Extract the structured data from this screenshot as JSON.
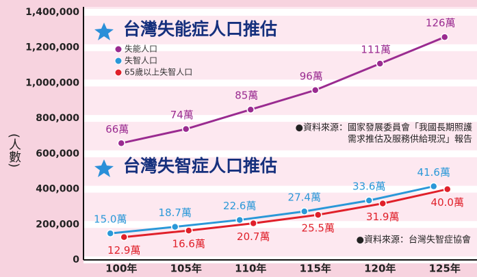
{
  "chart_data": {
    "type": "line",
    "titles": [
      "台灣失能症人口推估",
      "台灣失智症人口推估"
    ],
    "y_label": "(人數)",
    "categories": [
      "100年",
      "105年",
      "110年",
      "115年",
      "120年",
      "125年"
    ],
    "series": [
      {
        "name": "失能人口",
        "color": "#9a2b90",
        "values": [
          660000,
          740000,
          850000,
          960000,
          1110000,
          1260000
        ],
        "value_labels": [
          "66萬",
          "74萬",
          "85萬",
          "96萬",
          "111萬",
          "126萬"
        ]
      },
      {
        "name": "失智人口",
        "color": "#2a98d8",
        "values": [
          150000,
          187000,
          226000,
          274000,
          336000,
          416000
        ],
        "value_labels": [
          "15.0萬",
          "18.7萬",
          "22.6萬",
          "27.4萬",
          "33.6萬",
          "41.6萬"
        ]
      },
      {
        "name": "65歲以上失智人口",
        "color": "#e0202a",
        "values": [
          129000,
          166000,
          207000,
          255000,
          319000,
          400000
        ],
        "value_labels": [
          "12.9萬",
          "16.6萬",
          "20.7萬",
          "25.5萬",
          "31.9萬",
          "40.0萬"
        ]
      }
    ],
    "sources": [
      [
        "●資料來源：國家發展委員會「我國長期照護",
        "需求推估及服務供給現況」報告"
      ],
      [
        "●資料來源：台灣失智症協會"
      ]
    ],
    "ylim": [
      0,
      1400000
    ],
    "yticks": [
      0,
      {
        "value": 200000,
        "label": "200,000"
      },
      {
        "value": 400000,
        "label": "400,000"
      },
      {
        "value": 600000,
        "label": "600,000"
      },
      {
        "value": 800000,
        "label": "800,000"
      },
      {
        "value": 1000000,
        "label": "1,000,000"
      },
      {
        "value": 1200000,
        "label": "1,200,000"
      },
      {
        "value": 1400000,
        "label": "1,400,000"
      }
    ],
    "grid": true
  }
}
